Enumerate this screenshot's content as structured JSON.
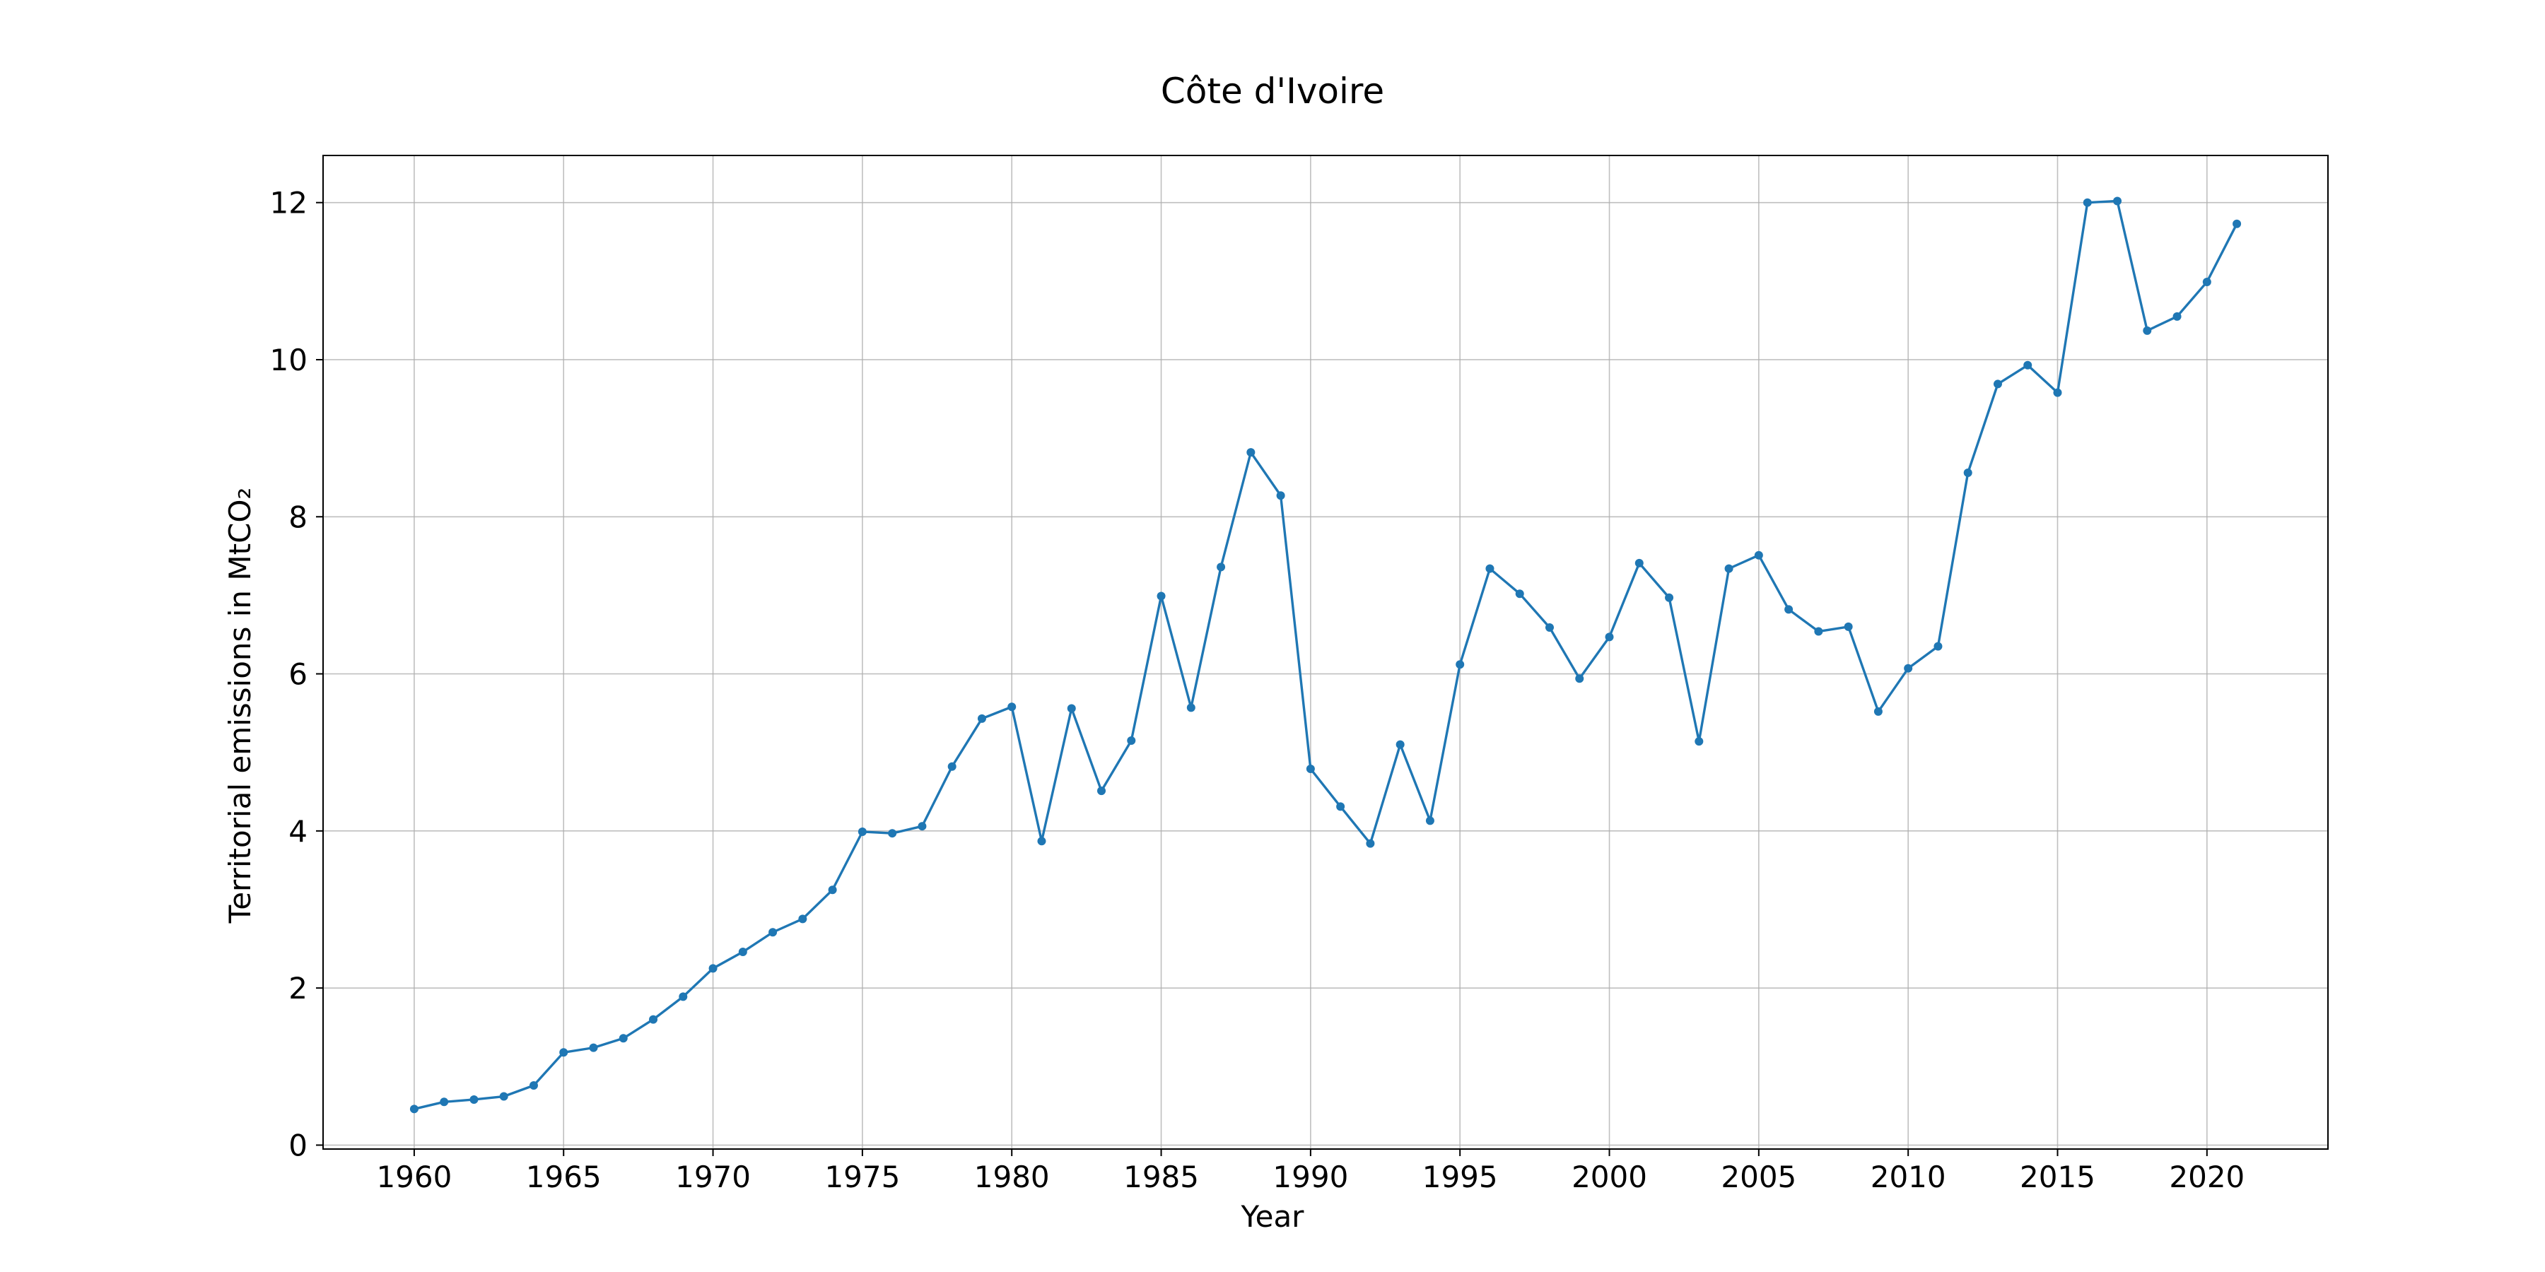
{
  "chart_data": {
    "type": "line",
    "title": "Côte d'Ivoire",
    "xlabel": "Year",
    "ylabel": "Territorial emissions in MtCO₂",
    "xlim": [
      1956.95,
      2024.05
    ],
    "ylim": [
      -0.05,
      12.6
    ],
    "xticks": [
      1960,
      1965,
      1970,
      1975,
      1980,
      1985,
      1990,
      1995,
      2000,
      2005,
      2010,
      2015,
      2020
    ],
    "yticks": [
      0,
      2,
      4,
      6,
      8,
      10,
      12
    ],
    "grid": true,
    "line_color": "#1f77b4",
    "marker": "circle",
    "x": [
      1960,
      1961,
      1962,
      1963,
      1964,
      1965,
      1966,
      1967,
      1968,
      1969,
      1970,
      1971,
      1972,
      1973,
      1974,
      1975,
      1976,
      1977,
      1978,
      1979,
      1980,
      1981,
      1982,
      1983,
      1984,
      1985,
      1986,
      1987,
      1988,
      1989,
      1990,
      1991,
      1992,
      1993,
      1994,
      1995,
      1996,
      1997,
      1998,
      1999,
      2000,
      2001,
      2002,
      2003,
      2004,
      2005,
      2006,
      2007,
      2008,
      2009,
      2010,
      2011,
      2012,
      2013,
      2014,
      2015,
      2016,
      2017,
      2018,
      2019,
      2020,
      2021
    ],
    "series": [
      {
        "values": [
          0.46,
          0.55,
          0.58,
          0.62,
          0.76,
          1.18,
          1.24,
          1.36,
          1.6,
          1.89,
          2.25,
          2.46,
          2.71,
          2.88,
          3.25,
          3.99,
          3.97,
          4.06,
          4.82,
          5.43,
          5.58,
          3.87,
          5.56,
          4.51,
          5.15,
          6.99,
          5.57,
          7.36,
          8.82,
          8.27,
          4.79,
          4.31,
          3.84,
          5.1,
          4.13,
          6.12,
          7.34,
          7.02,
          6.59,
          5.94,
          6.47,
          7.41,
          6.97,
          5.14,
          7.34,
          7.51,
          6.82,
          6.54,
          6.6,
          5.52,
          6.07,
          6.35,
          8.56,
          9.69,
          9.93,
          9.58,
          12.0,
          12.02,
          10.37,
          10.55,
          10.99,
          11.73
        ]
      }
    ]
  }
}
